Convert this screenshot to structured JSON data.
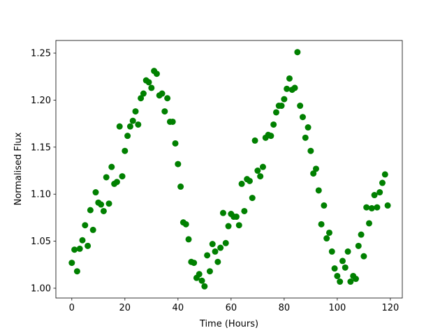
{
  "chart_data": {
    "type": "scatter",
    "xlabel": "Time (Hours)",
    "ylabel": "Normalised Flux",
    "color": "#008000",
    "x": [
      0,
      1,
      2,
      3,
      4,
      5,
      6,
      7,
      8,
      9,
      10,
      11,
      12,
      13,
      14,
      15,
      16,
      17,
      18,
      19,
      20,
      21,
      22,
      23,
      24,
      25,
      26,
      27,
      28,
      29,
      30,
      31,
      32,
      33,
      34,
      35,
      36,
      37,
      38,
      39,
      40,
      41,
      42,
      43,
      44,
      45,
      46,
      47,
      48,
      49,
      50,
      51,
      52,
      53,
      54,
      55,
      56,
      57,
      58,
      59,
      60,
      61,
      62,
      63,
      64,
      65,
      66,
      67,
      68,
      69,
      70,
      71,
      72,
      73,
      74,
      75,
      76,
      77,
      78,
      79,
      80,
      81,
      82,
      83,
      84,
      85,
      86,
      87,
      88,
      89,
      90,
      91,
      92,
      93,
      94,
      95,
      96,
      97,
      98,
      99,
      100,
      101,
      102,
      103,
      104,
      105,
      106,
      107,
      108,
      109,
      110,
      111,
      112,
      113,
      114,
      115,
      116,
      117,
      118,
      119
    ],
    "values": [
      1.027,
      1.041,
      1.018,
      1.042,
      1.051,
      1.067,
      1.045,
      1.083,
      1.062,
      1.102,
      1.091,
      1.089,
      1.082,
      1.118,
      1.09,
      1.129,
      1.111,
      1.113,
      1.172,
      1.119,
      1.146,
      1.162,
      1.172,
      1.178,
      1.188,
      1.174,
      1.202,
      1.207,
      1.221,
      1.219,
      1.213,
      1.231,
      1.228,
      1.205,
      1.207,
      1.188,
      1.202,
      1.177,
      1.177,
      1.154,
      1.132,
      1.108,
      1.07,
      1.068,
      1.052,
      1.028,
      1.027,
      1.011,
      1.015,
      1.008,
      1.002,
      1.035,
      1.018,
      1.047,
      1.039,
      1.028,
      1.043,
      1.08,
      1.048,
      1.066,
      1.079,
      1.076,
      1.076,
      1.067,
      1.111,
      1.082,
      1.116,
      1.114,
      1.096,
      1.157,
      1.125,
      1.119,
      1.129,
      1.16,
      1.163,
      1.162,
      1.174,
      1.187,
      1.194,
      1.194,
      1.201,
      1.212,
      1.223,
      1.211,
      1.213,
      1.251,
      1.194,
      1.182,
      1.16,
      1.171,
      1.146,
      1.122,
      1.127,
      1.104,
      1.068,
      1.088,
      1.053,
      1.059,
      1.039,
      1.021,
      1.013,
      1.007,
      1.029,
      1.022,
      1.039,
      1.007,
      1.013,
      1.01,
      1.045,
      1.057,
      1.034,
      1.086,
      1.069,
      1.085,
      1.099,
      1.086,
      1.102,
      1.112,
      1.121,
      1.088
    ],
    "xlim": [
      -6,
      124.5
    ],
    "xticks": [
      0,
      20,
      40,
      60,
      80,
      100,
      120
    ],
    "ylim": [
      0.9896,
      1.2634
    ],
    "yticks": [
      {
        "value": 1,
        "label": "1.00"
      },
      1.05,
      {
        "value": 1.1,
        "label": "1.10"
      },
      1.15,
      {
        "value": 1.2,
        "label": "1.20"
      },
      1.25
    ]
  }
}
